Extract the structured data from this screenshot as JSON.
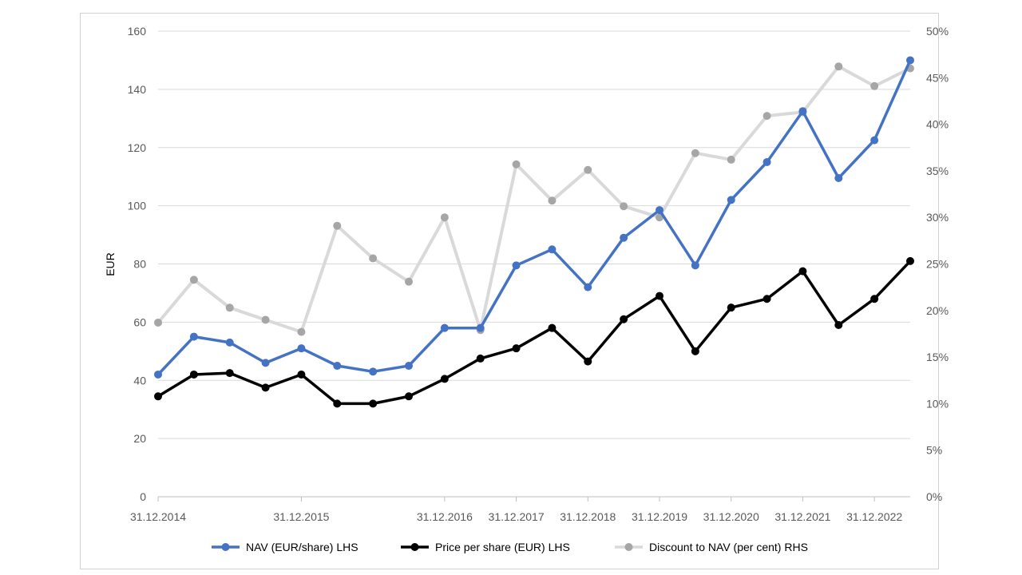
{
  "chart_data": {
    "type": "line",
    "ylabel": "EUR",
    "ylim": [
      0,
      160
    ],
    "y_ticks": [
      "0",
      "20",
      "40",
      "60",
      "80",
      "100",
      "120",
      "140",
      "160"
    ],
    "y2lim": [
      0,
      50
    ],
    "y2_ticks": [
      "0%",
      "5%",
      "10%",
      "15%",
      "20%",
      "25%",
      "30%",
      "35%",
      "40%",
      "45%",
      "50%"
    ],
    "x_tick_labels": [
      "31.12.2014",
      "31.12.2015",
      "31.12.2016",
      "31.12.2017",
      "31.12.2018",
      "31.12.2019",
      "31.12.2020",
      "31.12.2021",
      "31.12.2022"
    ],
    "x": [
      "31.12.2014",
      "31.03.2015",
      "30.06.2015",
      "30.09.2015",
      "31.12.2015",
      "31.03.2016",
      "30.06.2016",
      "30.09.2016",
      "31.12.2016",
      "30.06.2017",
      "31.12.2017",
      "30.06.2018",
      "31.12.2018",
      "30.06.2019",
      "31.12.2019",
      "30.06.2020",
      "31.12.2020",
      "30.06.2021",
      "31.12.2021",
      "30.06.2022",
      "31.12.2022",
      "30.06.2023"
    ],
    "grid": true,
    "legend_position": "bottom",
    "series": [
      {
        "name": "NAV (EUR/share) LHS",
        "axis": "left",
        "color": "#4472c4",
        "values": [
          42,
          55,
          53,
          46,
          51,
          45,
          43,
          45,
          58,
          58,
          79.5,
          85,
          72,
          89,
          98.5,
          79.5,
          102,
          115,
          132.5,
          109.5,
          122.5,
          150
        ]
      },
      {
        "name": "Price per share (EUR) LHS",
        "axis": "left",
        "color": "#000000",
        "values": [
          34.5,
          42,
          42.5,
          37.5,
          42,
          32,
          32,
          34.5,
          40.5,
          47.5,
          51,
          58,
          46.5,
          61,
          69,
          50,
          65,
          68,
          77.5,
          59,
          68,
          81
        ]
      },
      {
        "name": "Discount to NAV (per cent) RHS",
        "axis": "right",
        "color": "#d9d9d9",
        "values": [
          18.7,
          23.3,
          20.3,
          19,
          17.7,
          29.1,
          25.6,
          23.1,
          30,
          17.9,
          35.7,
          31.8,
          35.1,
          31.2,
          30,
          36.9,
          36.2,
          40.9,
          41.3,
          46.2,
          44.1,
          46
        ]
      }
    ]
  }
}
